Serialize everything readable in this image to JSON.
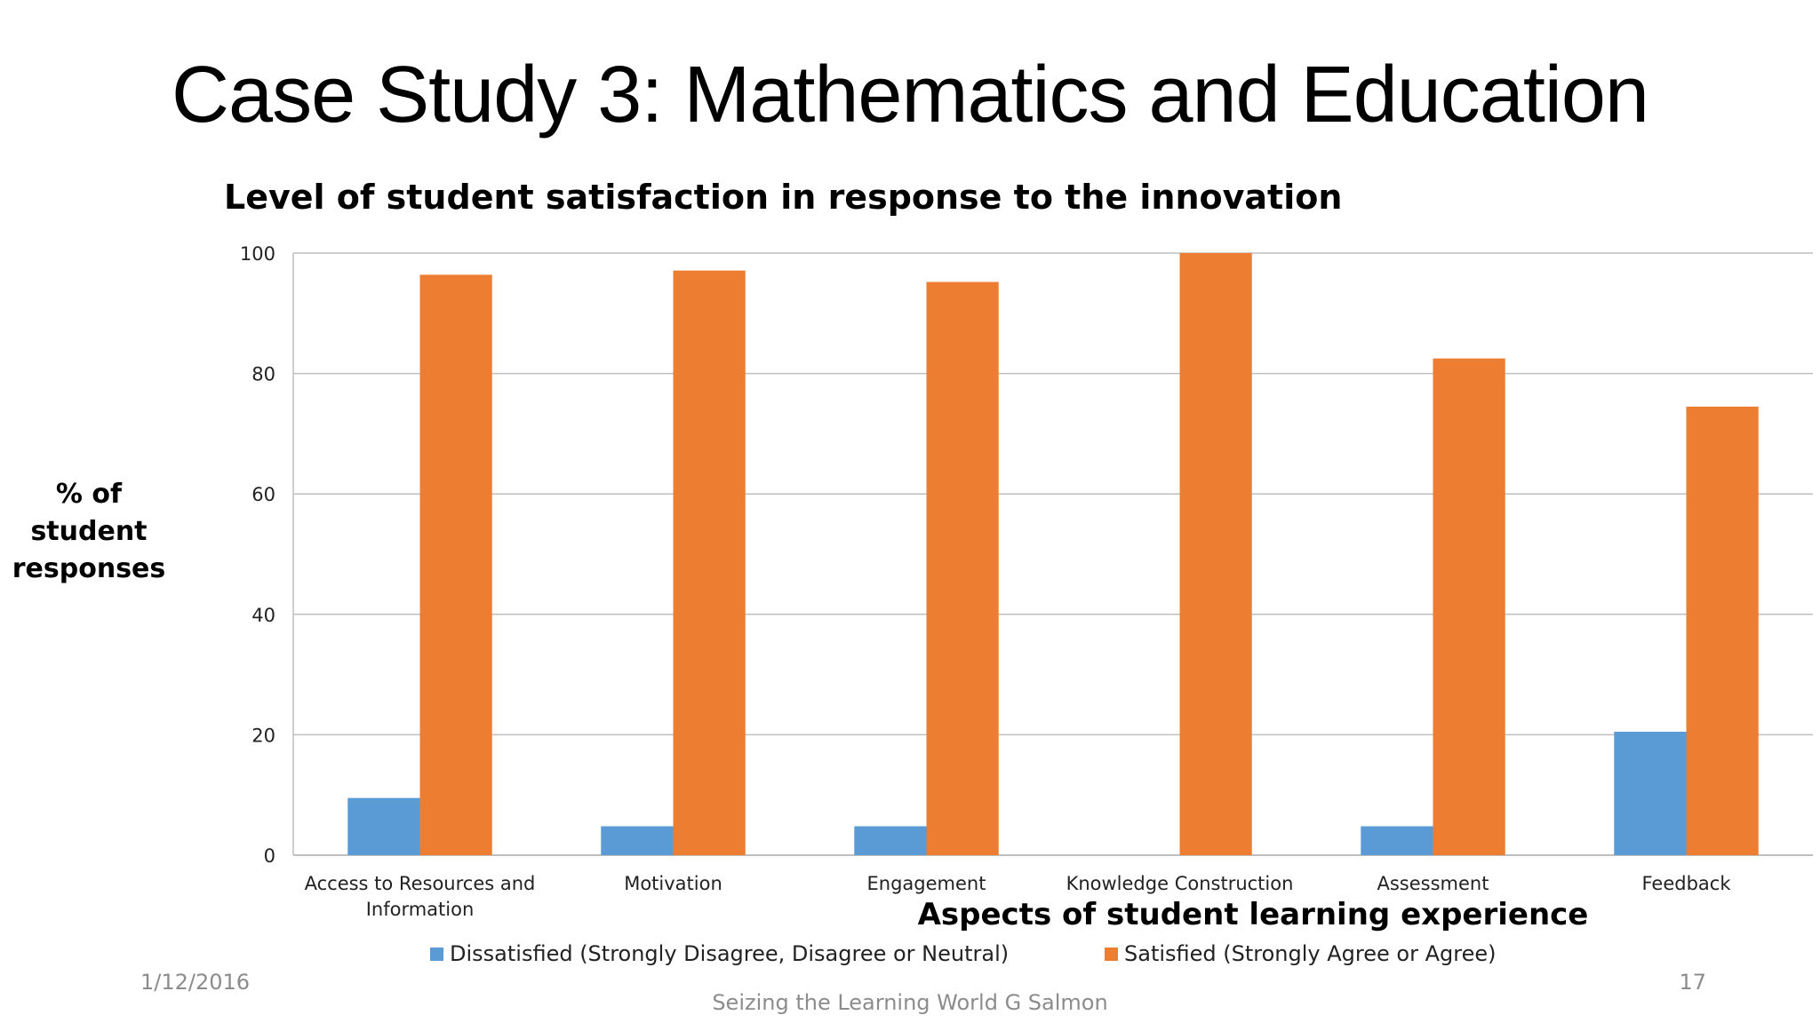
{
  "slide": {
    "title": "Case Study 3: Mathematics and Education"
  },
  "footer": {
    "date": "1/12/2016",
    "center": "Seizing the Learning World G Salmon",
    "page": "17"
  },
  "chart_data": {
    "type": "bar",
    "title": "Level of student satisfaction in response to the innovation",
    "ylabel_lines": [
      "% of student",
      "responses"
    ],
    "xlabel": "Aspects of student learning experience",
    "categories": [
      [
        "Access to Resources and",
        "Information"
      ],
      [
        "Motivation"
      ],
      [
        "Engagement"
      ],
      [
        "Knowledge Construction"
      ],
      [
        "Assessment"
      ],
      [
        "Feedback"
      ]
    ],
    "series": [
      {
        "name": "Dissatisfied (Strongly Disagree, Disagree or Neutral)",
        "color": "#5b9bd5",
        "values": [
          9.5,
          4.8,
          4.8,
          0,
          4.8,
          20.5
        ]
      },
      {
        "name": "Satisfied (Strongly Agree or Agree)",
        "color": "#ed7d31",
        "values": [
          96.4,
          97.1,
          95.2,
          100,
          82.5,
          74.5
        ]
      }
    ],
    "ylim": [
      0,
      100
    ],
    "yticks": [
      0,
      20,
      40,
      60,
      80,
      100
    ],
    "grid": true,
    "legend_position": "bottom"
  }
}
